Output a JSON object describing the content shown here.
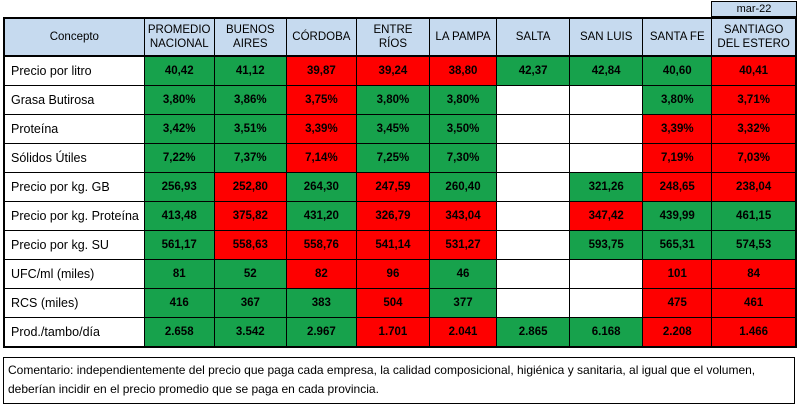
{
  "period": "mar-22",
  "comment": "Comentario: independientemente del precio que paga cada empresa, la calidad composicional, higiénica y sanitaria, al igual que el volumen, deberían incidir en el precio promedio que se paga en cada provincia.",
  "colors": {
    "good": "#17a24c",
    "bad": "#fe0000",
    "empty": "#ffffff",
    "header_bg": "#c6daef",
    "border": "#000000"
  },
  "chart_data": {
    "type": "table",
    "corner_header": "Concepto",
    "columns": [
      "PROMEDIO NACIONAL",
      "BUENOS AIRES",
      "CÓRDOBA",
      "ENTRE RÍOS",
      "LA PAMPA",
      "SALTA",
      "SAN LUIS",
      "SANTA FE",
      "SANTIAGO DEL ESTERO"
    ],
    "rows": [
      {
        "label": "Precio por litro",
        "values": [
          "40,42",
          "41,12",
          "39,87",
          "39,24",
          "38,80",
          "42,37",
          "42,84",
          "40,60",
          "40,41"
        ],
        "status": [
          "good",
          "good",
          "bad",
          "bad",
          "bad",
          "good",
          "good",
          "good",
          "bad"
        ]
      },
      {
        "label": "Grasa Butirosa",
        "values": [
          "3,80%",
          "3,86%",
          "3,75%",
          "3,80%",
          "3,80%",
          "",
          "",
          "3,80%",
          "3,71%"
        ],
        "status": [
          "good",
          "good",
          "bad",
          "good",
          "good",
          "empty",
          "empty",
          "good",
          "bad"
        ]
      },
      {
        "label": "Proteína",
        "values": [
          "3,42%",
          "3,51%",
          "3,39%",
          "3,45%",
          "3,50%",
          "",
          "",
          "3,39%",
          "3,32%"
        ],
        "status": [
          "good",
          "good",
          "bad",
          "good",
          "good",
          "empty",
          "empty",
          "bad",
          "bad"
        ]
      },
      {
        "label": "Sólidos Útiles",
        "values": [
          "7,22%",
          "7,37%",
          "7,14%",
          "7,25%",
          "7,30%",
          "",
          "",
          "7,19%",
          "7,03%"
        ],
        "status": [
          "good",
          "good",
          "bad",
          "good",
          "good",
          "empty",
          "empty",
          "bad",
          "bad"
        ]
      },
      {
        "label": "Precio por kg. GB",
        "values": [
          "256,93",
          "252,80",
          "264,30",
          "247,59",
          "260,40",
          "",
          "321,26",
          "248,65",
          "238,04"
        ],
        "status": [
          "good",
          "bad",
          "good",
          "bad",
          "good",
          "empty",
          "good",
          "bad",
          "bad"
        ]
      },
      {
        "label": "Precio por kg. Proteína",
        "values": [
          "413,48",
          "375,82",
          "431,20",
          "326,79",
          "343,04",
          "",
          "347,42",
          "439,99",
          "461,15"
        ],
        "status": [
          "good",
          "bad",
          "good",
          "bad",
          "bad",
          "empty",
          "bad",
          "good",
          "good"
        ]
      },
      {
        "label": "Precio por kg. SU",
        "values": [
          "561,17",
          "558,63",
          "558,76",
          "541,14",
          "531,27",
          "",
          "593,75",
          "565,31",
          "574,53"
        ],
        "status": [
          "good",
          "bad",
          "bad",
          "bad",
          "bad",
          "empty",
          "good",
          "good",
          "good"
        ]
      },
      {
        "label": "UFC/ml (miles)",
        "values": [
          "81",
          "52",
          "82",
          "96",
          "46",
          "",
          "",
          "101",
          "84"
        ],
        "status": [
          "good",
          "good",
          "bad",
          "bad",
          "good",
          "empty",
          "empty",
          "bad",
          "bad"
        ]
      },
      {
        "label": "RCS (miles)",
        "values": [
          "416",
          "367",
          "383",
          "504",
          "377",
          "",
          "",
          "475",
          "461"
        ],
        "status": [
          "good",
          "good",
          "good",
          "bad",
          "good",
          "empty",
          "empty",
          "bad",
          "bad"
        ]
      },
      {
        "label": "Prod./tambo/día",
        "values": [
          "2.658",
          "3.542",
          "2.967",
          "1.701",
          "2.041",
          "2.865",
          "6.168",
          "2.208",
          "1.466"
        ],
        "status": [
          "good",
          "good",
          "good",
          "bad",
          "bad",
          "good",
          "good",
          "bad",
          "bad"
        ]
      }
    ]
  }
}
